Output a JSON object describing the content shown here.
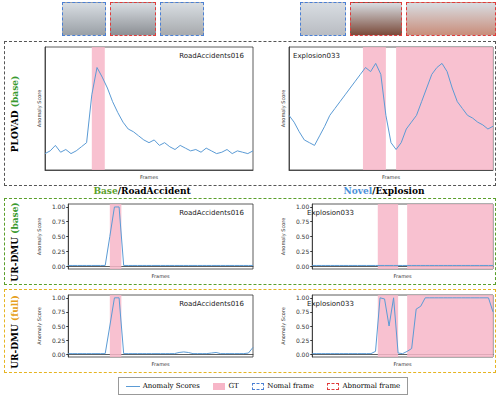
{
  "figure": {
    "rows": [
      [
        {
          "text": "PLOVAD "
        },
        {
          "text": "(base)",
          "color": "#3a9a2f"
        }
      ],
      [
        {
          "text": "UR-DMU "
        },
        {
          "text": "(base)",
          "color": "#3a9a2f"
        }
      ],
      [
        {
          "text": "UR-DMU "
        },
        {
          "text": "(full)",
          "color": "#e6a020"
        }
      ]
    ],
    "captions": [
      [
        {
          "text": "Base",
          "color": "#5aa02c"
        },
        {
          "text": "/RoadAccident"
        }
      ],
      [
        {
          "text": "Novel",
          "color": "#4a90d9"
        },
        {
          "text": "/Explosion"
        }
      ]
    ],
    "legend_items": [
      {
        "label": "Anomaly Scores",
        "marker": "line",
        "color": "#5b9bd5"
      },
      {
        "label": "GT",
        "marker": "rect",
        "color": "#f7b6c8"
      },
      {
        "label": "Nomal frame",
        "marker": "dashed_box",
        "color": "#4a7fd4"
      },
      {
        "label": "Abnormal frame",
        "marker": "dashed_box",
        "color": "#e03a3a"
      }
    ]
  },
  "chart_data": [
    {
      "type": "line",
      "title": "RoadAccidents016",
      "x_label": "Frames",
      "y_label": "Anomaly Score",
      "x": [
        0,
        1,
        2,
        3,
        4,
        5,
        6,
        7,
        8,
        9,
        10,
        11,
        12,
        13,
        14,
        15,
        16,
        17,
        18,
        19,
        20,
        21,
        22,
        23,
        24,
        25,
        26,
        27,
        28,
        29,
        30,
        31,
        32,
        33,
        34,
        35,
        36,
        37,
        38,
        39,
        40
      ],
      "xlim": [
        0,
        40
      ],
      "ylim": [
        0,
        0.9
      ],
      "tick_labels": false,
      "gt_spans": [
        [
          9,
          11.5
        ]
      ],
      "series": [
        {
          "name": "Anomaly Scores",
          "color": "#5b9bd5",
          "values": [
            0.12,
            0.14,
            0.18,
            0.13,
            0.15,
            0.12,
            0.14,
            0.17,
            0.2,
            0.55,
            0.75,
            0.68,
            0.6,
            0.5,
            0.42,
            0.35,
            0.3,
            0.28,
            0.25,
            0.22,
            0.2,
            0.22,
            0.18,
            0.2,
            0.17,
            0.15,
            0.18,
            0.16,
            0.14,
            0.15,
            0.13,
            0.16,
            0.14,
            0.12,
            0.13,
            0.15,
            0.12,
            0.14,
            0.13,
            0.12,
            0.14
          ]
        }
      ]
    },
    {
      "type": "line",
      "title": "Explosion033",
      "x_label": "Frames",
      "y_label": "Anomaly Score",
      "x": [
        0,
        1,
        2,
        3,
        4,
        5,
        6,
        7,
        8,
        9,
        10,
        11,
        12,
        13,
        14,
        15,
        16,
        17,
        18,
        19,
        20,
        21,
        22,
        23,
        24,
        25,
        26,
        27,
        28,
        29,
        30,
        31,
        32,
        33,
        34,
        35,
        36,
        37,
        38,
        39,
        40
      ],
      "xlim": [
        0,
        40
      ],
      "ylim": [
        0,
        0.9
      ],
      "tick_labels": false,
      "gt_spans": [
        [
          14.5,
          19
        ],
        [
          21,
          40
        ]
      ],
      "series": [
        {
          "name": "Anomaly Scores",
          "color": "#5b9bd5",
          "values": [
            0.4,
            0.35,
            0.28,
            0.22,
            0.2,
            0.18,
            0.25,
            0.32,
            0.4,
            0.45,
            0.5,
            0.55,
            0.6,
            0.65,
            0.7,
            0.75,
            0.72,
            0.78,
            0.7,
            0.4,
            0.2,
            0.15,
            0.2,
            0.3,
            0.35,
            0.4,
            0.5,
            0.6,
            0.7,
            0.75,
            0.78,
            0.72,
            0.6,
            0.5,
            0.45,
            0.4,
            0.38,
            0.35,
            0.33,
            0.3,
            0.32
          ]
        }
      ]
    },
    {
      "type": "line",
      "title": "RoadAccidents016",
      "x_label": "Frames",
      "y_label": "Anomaly Score",
      "x": [
        0,
        1,
        2,
        3,
        4,
        5,
        6,
        7,
        8,
        9,
        10,
        11,
        12,
        13,
        14,
        15,
        16,
        17,
        18,
        19,
        20,
        21,
        22,
        23,
        24,
        25,
        26,
        27,
        28,
        29,
        30,
        31,
        32,
        33,
        34,
        35,
        36,
        37,
        38,
        39,
        40
      ],
      "xlim": [
        0,
        40
      ],
      "ylim": [
        -0.05,
        1.05
      ],
      "yticks": [
        {
          "value": 0,
          "label": "0.00"
        },
        {
          "value": 0.25,
          "label": "0.25"
        },
        {
          "value": 0.5,
          "label": "0.50"
        },
        {
          "value": 0.75,
          "label": "0.75"
        },
        {
          "value": 1,
          "label": "1.00"
        }
      ],
      "tick_labels": "y",
      "gt_spans": [
        [
          9,
          11.5
        ]
      ],
      "series": [
        {
          "name": "Anomaly Scores",
          "color": "#5b9bd5",
          "values": [
            0.01,
            0.01,
            0.01,
            0.01,
            0.01,
            0.01,
            0.01,
            0.01,
            0.01,
            0.5,
            1.0,
            1.0,
            0.01,
            0.01,
            0.01,
            0.01,
            0.01,
            0.01,
            0.01,
            0.01,
            0.01,
            0.01,
            0.01,
            0.01,
            0.01,
            0.01,
            0.01,
            0.01,
            0.01,
            0.01,
            0.01,
            0.01,
            0.01,
            0.01,
            0.01,
            0.01,
            0.01,
            0.01,
            0.01,
            0.01,
            0.01
          ]
        }
      ]
    },
    {
      "type": "line",
      "title": "Explosion033",
      "x_label": "Frames",
      "y_label": "Anomaly Score",
      "x": [
        0,
        1,
        2,
        3,
        4,
        5,
        6,
        7,
        8,
        9,
        10,
        11,
        12,
        13,
        14,
        15,
        16,
        17,
        18,
        19,
        20,
        21,
        22,
        23,
        24,
        25,
        26,
        27,
        28,
        29,
        30,
        31,
        32,
        33,
        34,
        35,
        36,
        37,
        38,
        39,
        40
      ],
      "xlim": [
        0,
        40
      ],
      "ylim": [
        -0.05,
        1.05
      ],
      "yticks": [
        {
          "value": 0,
          "label": "0.00"
        },
        {
          "value": 0.25,
          "label": "0.25"
        },
        {
          "value": 0.5,
          "label": "0.50"
        },
        {
          "value": 0.75,
          "label": "0.75"
        },
        {
          "value": 1,
          "label": "1.00"
        }
      ],
      "tick_labels": "y",
      "gt_spans": [
        [
          14.5,
          19
        ],
        [
          21,
          40
        ]
      ],
      "series": [
        {
          "name": "Anomaly Scores",
          "color": "#5b9bd5",
          "values": [
            0.01,
            0.01,
            0.01,
            0.01,
            0.01,
            0.01,
            0.01,
            0.01,
            0.01,
            0.01,
            0.01,
            0.01,
            0.01,
            0.01,
            0.01,
            0.01,
            0.01,
            0.01,
            0.01,
            0.01,
            0.01,
            0.01,
            0.01,
            0.01,
            0.01,
            0.01,
            0.01,
            0.01,
            0.01,
            0.01,
            0.01,
            0.01,
            0.01,
            0.01,
            0.01,
            0.01,
            0.01,
            0.01,
            0.01,
            0.01,
            0.01
          ]
        }
      ]
    },
    {
      "type": "line",
      "title": "RoadAccidents016",
      "x_label": "Frames",
      "y_label": "Anomaly Score",
      "x": [
        0,
        1,
        2,
        3,
        4,
        5,
        6,
        7,
        8,
        9,
        10,
        11,
        12,
        13,
        14,
        15,
        16,
        17,
        18,
        19,
        20,
        21,
        22,
        23,
        24,
        25,
        26,
        27,
        28,
        29,
        30,
        31,
        32,
        33,
        34,
        35,
        36,
        37,
        38,
        39,
        40
      ],
      "xlim": [
        0,
        40
      ],
      "ylim": [
        -0.05,
        1.05
      ],
      "yticks": [
        {
          "value": 0,
          "label": "0.00"
        },
        {
          "value": 0.25,
          "label": "0.25"
        },
        {
          "value": 0.5,
          "label": "0.50"
        },
        {
          "value": 0.75,
          "label": "0.75"
        },
        {
          "value": 1,
          "label": "1.00"
        }
      ],
      "tick_labels": "y",
      "gt_spans": [
        [
          9,
          11.5
        ]
      ],
      "series": [
        {
          "name": "Anomaly Scores",
          "color": "#5b9bd5",
          "values": [
            0.01,
            0.01,
            0.01,
            0.01,
            0.01,
            0.01,
            0.01,
            0.01,
            0.01,
            0.5,
            1.0,
            1.0,
            0.01,
            0.01,
            0.01,
            0.01,
            0.01,
            0.01,
            0.01,
            0.01,
            0.01,
            0.01,
            0.01,
            0.01,
            0.03,
            0.04,
            0.03,
            0.01,
            0.01,
            0.01,
            0.01,
            0.02,
            0.03,
            0.01,
            0.01,
            0.01,
            0.01,
            0.01,
            0.01,
            0.02,
            0.12
          ]
        }
      ]
    },
    {
      "type": "line",
      "title": "Explosion033",
      "x_label": "Frames",
      "y_label": "Anomaly Score",
      "x": [
        0,
        1,
        2,
        3,
        4,
        5,
        6,
        7,
        8,
        9,
        10,
        11,
        12,
        13,
        14,
        15,
        16,
        17,
        18,
        19,
        20,
        21,
        22,
        23,
        24,
        25,
        26,
        27,
        28,
        29,
        30,
        31,
        32,
        33,
        34,
        35,
        36,
        37,
        38,
        39,
        40
      ],
      "xlim": [
        0,
        40
      ],
      "ylim": [
        -0.05,
        1.05
      ],
      "yticks": [
        {
          "value": 0,
          "label": "0.00"
        },
        {
          "value": 0.25,
          "label": "0.25"
        },
        {
          "value": 0.5,
          "label": "0.50"
        },
        {
          "value": 0.75,
          "label": "0.75"
        },
        {
          "value": 1,
          "label": "1.00"
        }
      ],
      "tick_labels": "y",
      "gt_spans": [
        [
          14.5,
          19
        ],
        [
          21,
          40
        ]
      ],
      "series": [
        {
          "name": "Anomaly Scores",
          "color": "#5b9bd5",
          "values": [
            0.01,
            0.01,
            0.01,
            0.01,
            0.01,
            0.01,
            0.01,
            0.01,
            0.01,
            0.01,
            0.01,
            0.01,
            0.01,
            0.01,
            0.05,
            1.0,
            0.98,
            0.5,
            1.0,
            0.02,
            0.01,
            0.05,
            0.1,
            0.8,
            0.85,
            1.0,
            1.0,
            1.0,
            1.0,
            1.0,
            1.0,
            1.0,
            1.0,
            1.0,
            1.0,
            1.0,
            1.0,
            1.0,
            1.0,
            1.0,
            0.75
          ]
        }
      ]
    }
  ]
}
